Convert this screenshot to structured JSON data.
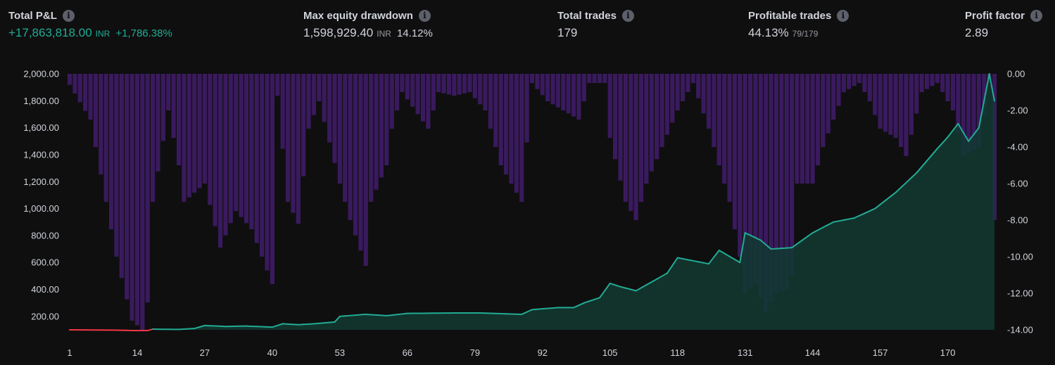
{
  "stats": {
    "total_pl": {
      "label": "Total P&L",
      "value": "+17,863,818.00",
      "unit": "INR",
      "pct": "+1,786.38%"
    },
    "max_drawdown": {
      "label": "Max equity drawdown",
      "value": "1,598,929.40",
      "unit": "INR",
      "pct": "14.12%"
    },
    "total_trades": {
      "label": "Total trades",
      "value": "179"
    },
    "profitable_trades": {
      "label": "Profitable trades",
      "value": "44.13%",
      "sub": "79/179"
    },
    "profit_factor": {
      "label": "Profit factor",
      "value": "2.89"
    },
    "info_glyph": "i"
  },
  "colors": {
    "equity_up": "#22ab94",
    "equity_down": "#f23645",
    "drawdown": "#3a1a5e",
    "area": "#123a31",
    "background": "#0f0f0f"
  },
  "chart_data": {
    "type": "line",
    "x_ticks": [
      "1",
      "14",
      "27",
      "40",
      "53",
      "66",
      "79",
      "92",
      "105",
      "118",
      "131",
      "144",
      "157",
      "170"
    ],
    "left_ticks": [
      "2,000.00",
      "1,800.00",
      "1,600.00",
      "1,400.00",
      "1,200.00",
      "1,000.00",
      "800.00",
      "600.00",
      "400.00",
      "200.00"
    ],
    "right_ticks": [
      "0.00",
      "-2.00",
      "-4.00",
      "-6.00",
      "-8.00",
      "-10.00",
      "-12.00",
      "-14.00"
    ],
    "x_range": [
      1,
      179
    ],
    "left_range": [
      100,
      2000
    ],
    "right_range": [
      -14,
      0
    ],
    "equity_pct_anchors": [
      [
        1,
        100
      ],
      [
        9,
        98
      ],
      [
        13,
        95
      ],
      [
        16,
        95
      ],
      [
        17,
        105
      ],
      [
        22,
        103
      ],
      [
        25,
        110
      ],
      [
        27,
        132
      ],
      [
        31,
        125
      ],
      [
        35,
        128
      ],
      [
        40,
        120
      ],
      [
        42,
        145
      ],
      [
        45,
        138
      ],
      [
        48,
        145
      ],
      [
        52,
        158
      ],
      [
        53,
        200
      ],
      [
        58,
        215
      ],
      [
        62,
        205
      ],
      [
        66,
        222
      ],
      [
        75,
        225
      ],
      [
        80,
        225
      ],
      [
        88,
        215
      ],
      [
        90,
        250
      ],
      [
        95,
        265
      ],
      [
        98,
        265
      ],
      [
        100,
        300
      ],
      [
        103,
        338
      ],
      [
        105,
        445
      ],
      [
        107,
        420
      ],
      [
        110,
        390
      ],
      [
        113,
        455
      ],
      [
        116,
        520
      ],
      [
        118,
        635
      ],
      [
        124,
        590
      ],
      [
        126,
        690
      ],
      [
        130,
        600
      ],
      [
        131,
        820
      ],
      [
        134,
        765
      ],
      [
        136,
        700
      ],
      [
        140,
        710
      ],
      [
        144,
        820
      ],
      [
        148,
        900
      ],
      [
        152,
        930
      ],
      [
        156,
        1000
      ],
      [
        160,
        1120
      ],
      [
        164,
        1265
      ],
      [
        168,
        1445
      ],
      [
        170,
        1530
      ],
      [
        172,
        1630
      ],
      [
        174,
        1500
      ],
      [
        176,
        1600
      ],
      [
        178,
        2000
      ],
      [
        179,
        1800
      ]
    ],
    "drawdown_pct_anchors": [
      [
        1,
        -0.6
      ],
      [
        5,
        -2.5
      ],
      [
        10,
        -10
      ],
      [
        13,
        -13.5
      ],
      [
        15,
        -14
      ],
      [
        16,
        -12.5
      ],
      [
        17,
        -7
      ],
      [
        20,
        -2
      ],
      [
        22,
        -5
      ],
      [
        23,
        -7
      ],
      [
        27,
        -6
      ],
      [
        30,
        -9.5
      ],
      [
        33,
        -7.5
      ],
      [
        36,
        -8.5
      ],
      [
        40,
        -11.5
      ],
      [
        41,
        -1.2
      ],
      [
        43,
        -7
      ],
      [
        45,
        -8.2
      ],
      [
        47,
        -3
      ],
      [
        49,
        -1.5
      ],
      [
        53,
        -6
      ],
      [
        55,
        -8
      ],
      [
        58,
        -10.5
      ],
      [
        59,
        -7
      ],
      [
        62,
        -5
      ],
      [
        63,
        -3
      ],
      [
        65,
        -1
      ],
      [
        70,
        -3
      ],
      [
        72,
        -1
      ],
      [
        75,
        -1.2
      ],
      [
        78,
        -1
      ],
      [
        81,
        -2
      ],
      [
        84,
        -5
      ],
      [
        86,
        -6
      ],
      [
        88,
        -7
      ],
      [
        90,
        -0.5
      ],
      [
        93,
        -1.5
      ],
      [
        96,
        -2
      ],
      [
        99,
        -2.5
      ],
      [
        101,
        -0.5
      ],
      [
        104,
        -0.5
      ],
      [
        105,
        -3.5
      ],
      [
        108,
        -7
      ],
      [
        110,
        -8
      ],
      [
        112,
        -6
      ],
      [
        115,
        -4
      ],
      [
        118,
        -2
      ],
      [
        121,
        -0.5
      ],
      [
        124,
        -3
      ],
      [
        126,
        -5
      ],
      [
        128,
        -7
      ],
      [
        130,
        -10
      ],
      [
        131,
        -12
      ],
      [
        133,
        -11.5
      ],
      [
        135,
        -13
      ],
      [
        137,
        -12
      ],
      [
        139,
        -11.8
      ],
      [
        140,
        -11
      ],
      [
        141,
        -6
      ],
      [
        144,
        -6
      ],
      [
        146,
        -4
      ],
      [
        148,
        -2.5
      ],
      [
        150,
        -1
      ],
      [
        153,
        -0.5
      ],
      [
        155,
        -1.5
      ],
      [
        157,
        -3
      ],
      [
        160,
        -3.5
      ],
      [
        162,
        -4.5
      ],
      [
        165,
        -1
      ],
      [
        168,
        -0.5
      ],
      [
        170,
        -1.5
      ],
      [
        171,
        -2
      ],
      [
        173,
        -4.5
      ],
      [
        176,
        -4
      ],
      [
        178,
        -0.5
      ],
      [
        179,
        -8
      ]
    ]
  }
}
